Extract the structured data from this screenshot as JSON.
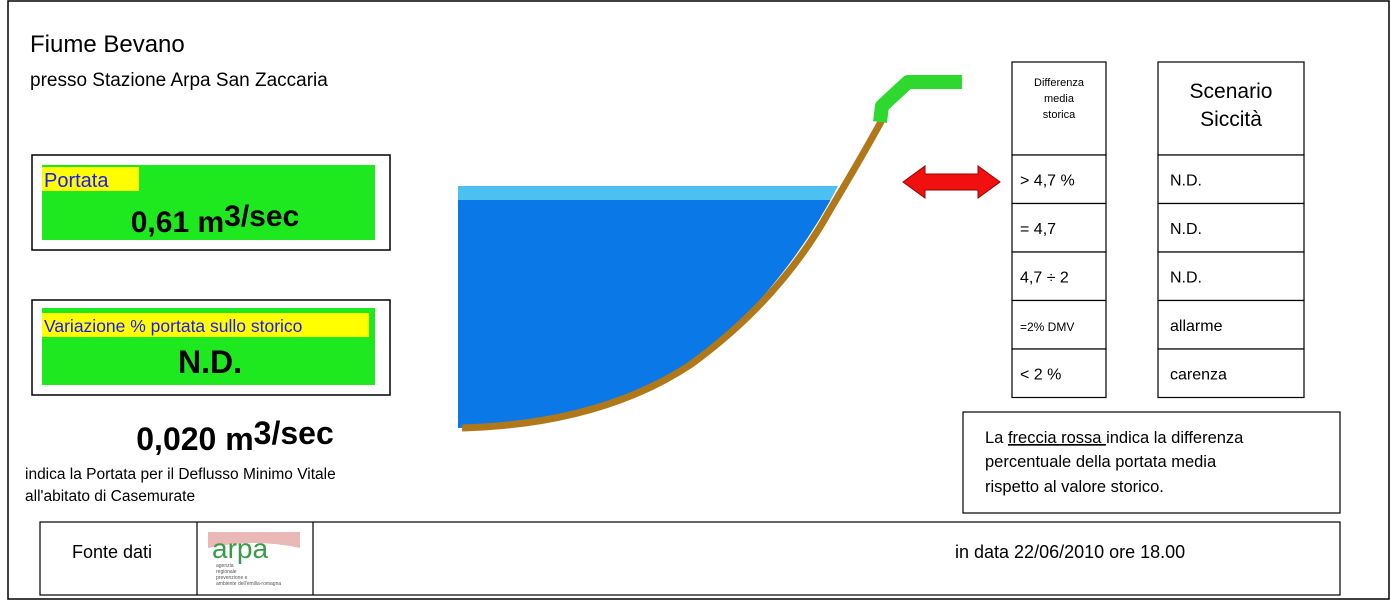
{
  "header": {
    "title": "Fiume Bevano",
    "subtitle": "presso Stazione Arpa San Zaccaria"
  },
  "portata": {
    "label": "Portata",
    "value": "0,61 m",
    "unit": "3/sec"
  },
  "variazione": {
    "label": "Variazione % portata sullo storico",
    "value": "N.D."
  },
  "dmv": {
    "value": "0,020 m",
    "unit": "3/sec",
    "note": [
      "indica la Portata  per il Deflusso Minimo Vitale",
      "all'abitato di Casemurate"
    ]
  },
  "table": {
    "header_left": [
      "Differenza",
      "media",
      "storica"
    ],
    "header_right": [
      "Scenario",
      "Siccità"
    ],
    "rows": [
      [
        "> 4,7 %",
        "N.D."
      ],
      [
        "= 4,7",
        "N.D."
      ],
      [
        "4,7 ÷ 2",
        "N.D."
      ],
      [
        "=2% DMV",
        "allarme"
      ],
      [
        "< 2 %",
        "carenza"
      ]
    ]
  },
  "legend_note": {
    "prefix": "La ",
    "highlight": "freccia rossa ",
    "lines": [
      "indica la differenza",
      "percentuale della portata media",
      "rispetto al valore storico."
    ]
  },
  "footer": {
    "source": "Fonte dati",
    "logo": "arpa",
    "logo_sub": [
      "agenzia",
      "regionale",
      "prevenzione e",
      "ambiente dell'emilia-romagna"
    ],
    "date": "in data 22/06/2010 ore 18.00"
  }
}
